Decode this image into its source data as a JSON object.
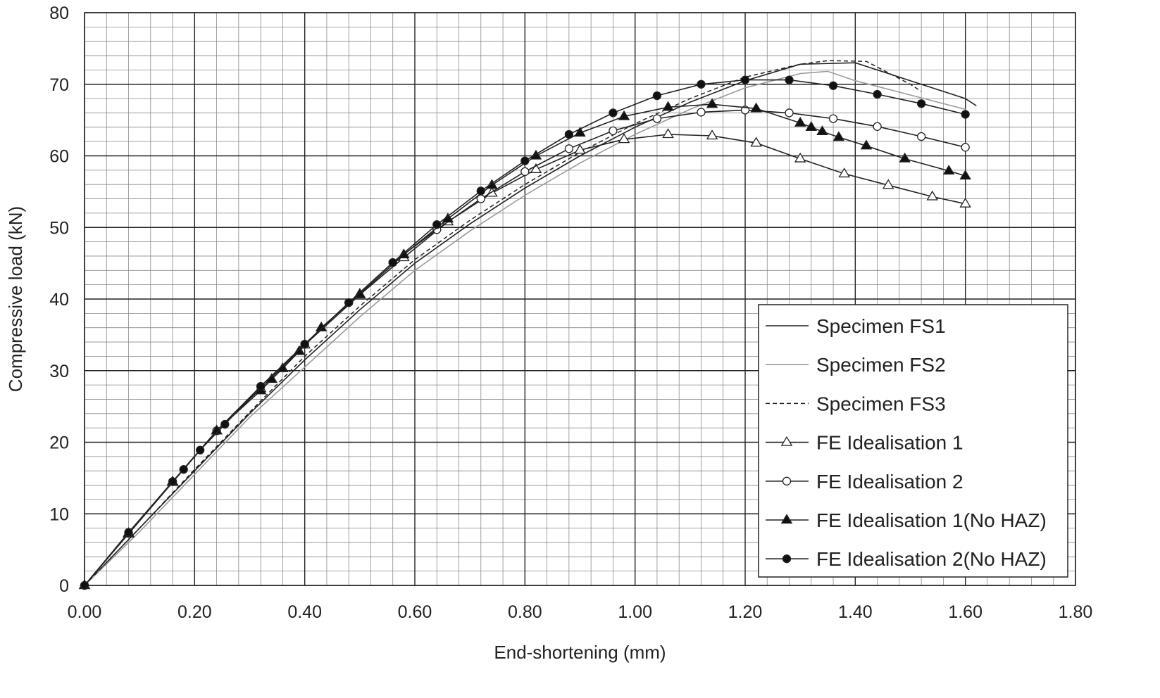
{
  "chart_data": {
    "type": "line",
    "xlabel": "End-shortening (mm)",
    "ylabel": "Compressive load (kN)",
    "xlim": [
      0,
      1.8
    ],
    "ylim": [
      0,
      80
    ],
    "x_ticks": [
      "0.00",
      "0.20",
      "0.40",
      "0.60",
      "0.80",
      "1.00",
      "1.20",
      "1.40",
      "1.60",
      "1.80"
    ],
    "y_ticks": [
      "0",
      "10",
      "20",
      "30",
      "40",
      "50",
      "60",
      "70",
      "80"
    ],
    "grid": true,
    "legend_position": "bottom-right",
    "series": [
      {
        "name": "Specimen FS1",
        "style": "solid-dark",
        "marker": "none",
        "x": [
          0,
          0.1,
          0.2,
          0.3,
          0.4,
          0.5,
          0.6,
          0.7,
          0.8,
          0.9,
          1.0,
          1.1,
          1.2,
          1.3,
          1.4,
          1.5,
          1.6,
          1.62
        ],
        "y": [
          0,
          8.0,
          16.0,
          24.0,
          31.5,
          38.5,
          45.0,
          50.5,
          55.5,
          60.0,
          64.0,
          67.5,
          70.5,
          72.8,
          73.0,
          70.5,
          68.0,
          67.0
        ]
      },
      {
        "name": "Specimen FS2",
        "style": "solid-light",
        "marker": "none",
        "x": [
          0,
          0.1,
          0.2,
          0.3,
          0.4,
          0.5,
          0.6,
          0.7,
          0.8,
          0.9,
          1.0,
          1.1,
          1.2,
          1.3,
          1.35,
          1.4,
          1.5,
          1.6
        ],
        "y": [
          0,
          7.5,
          15.5,
          23.5,
          30.5,
          37.5,
          44.0,
          49.5,
          54.5,
          59.0,
          63.0,
          66.5,
          69.5,
          71.5,
          71.8,
          70.5,
          68.5,
          66.5
        ]
      },
      {
        "name": "Specimen FS3",
        "style": "dashed",
        "marker": "none",
        "x": [
          0,
          0.1,
          0.2,
          0.3,
          0.4,
          0.5,
          0.6,
          0.7,
          0.8,
          0.9,
          1.0,
          1.1,
          1.2,
          1.3,
          1.35,
          1.42,
          1.5,
          1.52
        ],
        "y": [
          0,
          8.0,
          16.2,
          24.2,
          32.0,
          39.0,
          45.5,
          51.0,
          56.0,
          60.5,
          64.5,
          68.0,
          71.0,
          72.8,
          73.3,
          73.2,
          70.0,
          69.0
        ]
      },
      {
        "name": "FE Idealisation 1",
        "style": "solid-dark",
        "marker": "open-triangle",
        "x": [
          0,
          0.08,
          0.16,
          0.24,
          0.32,
          0.4,
          0.5,
          0.58,
          0.66,
          0.74,
          0.82,
          0.9,
          0.98,
          1.06,
          1.14,
          1.22,
          1.3,
          1.38,
          1.46,
          1.54,
          1.6
        ],
        "y": [
          0,
          7.2,
          14.4,
          21.6,
          27.5,
          33.6,
          40.6,
          45.8,
          50.8,
          54.8,
          58.1,
          60.8,
          62.3,
          63.0,
          62.8,
          61.8,
          59.6,
          57.5,
          55.9,
          54.3,
          53.3
        ]
      },
      {
        "name": "FE Idealisation 2",
        "style": "solid-dark",
        "marker": "open-circle",
        "x": [
          0,
          0.08,
          0.16,
          0.24,
          0.32,
          0.4,
          0.48,
          0.56,
          0.64,
          0.72,
          0.8,
          0.88,
          0.96,
          1.04,
          1.12,
          1.2,
          1.28,
          1.36,
          1.44,
          1.52,
          1.6
        ],
        "y": [
          0,
          7.3,
          14.5,
          21.6,
          27.8,
          33.7,
          39.5,
          45.1,
          49.7,
          54.0,
          57.8,
          61.0,
          63.5,
          65.2,
          66.1,
          66.4,
          66.0,
          65.2,
          64.1,
          62.7,
          61.2
        ]
      },
      {
        "name": "FE Idealisation 1(No HAZ)",
        "style": "solid-dark",
        "marker": "filled-triangle",
        "x": [
          0,
          0.08,
          0.16,
          0.24,
          0.32,
          0.34,
          0.36,
          0.39,
          0.43,
          0.5,
          0.58,
          0.66,
          0.74,
          0.82,
          0.9,
          0.98,
          1.06,
          1.14,
          1.22,
          1.3,
          1.32,
          1.34,
          1.37,
          1.42,
          1.49,
          1.57,
          1.6
        ],
        "y": [
          0,
          7.3,
          14.5,
          21.6,
          27.2,
          28.8,
          30.3,
          32.7,
          36.0,
          40.7,
          46.2,
          51.2,
          55.9,
          60.0,
          63.2,
          65.5,
          66.8,
          67.2,
          66.6,
          64.6,
          64.0,
          63.4,
          62.6,
          61.4,
          59.6,
          57.9,
          57.2
        ]
      },
      {
        "name": "FE Idealisation 2(No HAZ)",
        "style": "solid-dark",
        "marker": "filled-circle",
        "x": [
          0,
          0.08,
          0.16,
          0.18,
          0.21,
          0.255,
          0.32,
          0.4,
          0.48,
          0.56,
          0.64,
          0.72,
          0.8,
          0.88,
          0.96,
          1.04,
          1.12,
          1.2,
          1.28,
          1.36,
          1.44,
          1.52,
          1.6
        ],
        "y": [
          0,
          7.4,
          14.5,
          16.2,
          18.9,
          22.5,
          27.8,
          33.7,
          39.5,
          45.1,
          50.4,
          55.1,
          59.3,
          63.0,
          66.0,
          68.4,
          70.0,
          70.6,
          70.6,
          69.8,
          68.6,
          67.3,
          65.8
        ]
      }
    ]
  }
}
